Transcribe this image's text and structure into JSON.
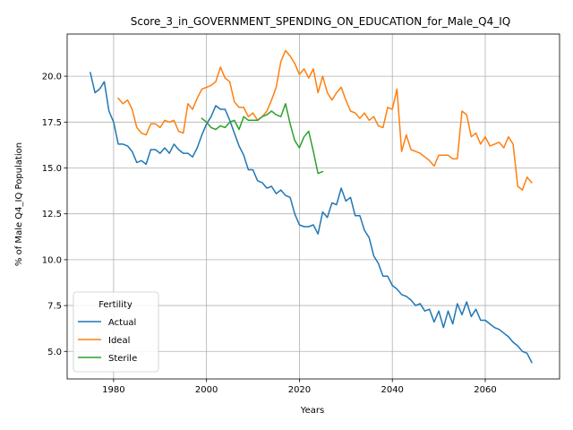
{
  "chart_data": {
    "type": "line",
    "title": "Score_3_in_GOVERNMENT_SPENDING_ON_EDUCATION_for_Male_Q4_IQ",
    "xlabel": "Years",
    "ylabel": "% of Male Q4_IQ Population",
    "xlim": [
      1970,
      2076
    ],
    "ylim": [
      3.5,
      22.3
    ],
    "xticks": [
      1980,
      2000,
      2020,
      2040,
      2060
    ],
    "yticks": [
      5.0,
      7.5,
      10.0,
      12.5,
      15.0,
      17.5,
      20.0
    ],
    "xtick_labels": [
      "1980",
      "2000",
      "2020",
      "2040",
      "2060"
    ],
    "ytick_labels": [
      "5.0",
      "7.5",
      "10.0",
      "12.5",
      "15.0",
      "17.5",
      "20.0"
    ],
    "grid": true,
    "legend": {
      "title": "Fertility",
      "placement": "lower-left"
    },
    "series": [
      {
        "name": "Actual",
        "color": "#1f77b4",
        "x": [
          1975,
          1976,
          1977,
          1978,
          1979,
          1980,
          1981,
          1982,
          1983,
          1984,
          1985,
          1986,
          1987,
          1988,
          1989,
          1990,
          1991,
          1992,
          1993,
          1994,
          1995,
          1996,
          1997,
          1998,
          1999,
          2000,
          2001,
          2002,
          2003,
          2004,
          2005,
          2006,
          2007,
          2008,
          2009,
          2010,
          2011,
          2012,
          2013,
          2014,
          2015,
          2016,
          2017,
          2018,
          2019,
          2020,
          2021,
          2022,
          2023,
          2024,
          2025,
          2026,
          2027,
          2028,
          2029,
          2030,
          2031,
          2032,
          2033,
          2034,
          2035,
          2036,
          2037,
          2038,
          2039,
          2040,
          2041,
          2042,
          2043,
          2044,
          2045,
          2046,
          2047,
          2048,
          2049,
          2050,
          2051,
          2052,
          2053,
          2054,
          2055,
          2056,
          2057,
          2058,
          2059,
          2060,
          2061,
          2062,
          2063,
          2064,
          2065,
          2066,
          2067,
          2068,
          2069,
          2070
        ],
        "y": [
          20.2,
          19.1,
          19.3,
          19.7,
          18.1,
          17.5,
          16.3,
          16.3,
          16.2,
          15.9,
          15.3,
          15.4,
          15.2,
          16.0,
          16.0,
          15.8,
          16.1,
          15.8,
          16.3,
          16.0,
          15.8,
          15.8,
          15.6,
          16.1,
          16.8,
          17.4,
          17.8,
          18.4,
          18.2,
          18.2,
          17.6,
          16.9,
          16.2,
          15.7,
          14.9,
          14.9,
          14.3,
          14.2,
          13.9,
          14.0,
          13.6,
          13.8,
          13.5,
          13.4,
          12.5,
          11.9,
          11.8,
          11.8,
          11.9,
          11.4,
          12.6,
          12.3,
          13.1,
          13.0,
          13.9,
          13.2,
          13.4,
          12.4,
          12.4,
          11.6,
          11.2,
          10.2,
          9.8,
          9.1,
          9.1,
          8.6,
          8.4,
          8.1,
          8.0,
          7.8,
          7.5,
          7.6,
          7.2,
          7.3,
          6.6,
          7.2,
          6.3,
          7.2,
          6.5,
          7.6,
          7.0,
          7.7,
          6.9,
          7.3,
          6.7,
          6.7,
          6.5,
          6.3,
          6.2,
          6.0,
          5.8,
          5.5,
          5.3,
          5.0,
          4.9,
          4.4
        ]
      },
      {
        "name": "Ideal",
        "color": "#ff7f0e",
        "x": [
          1981,
          1982,
          1983,
          1984,
          1985,
          1986,
          1987,
          1988,
          1989,
          1990,
          1991,
          1992,
          1993,
          1994,
          1995,
          1996,
          1997,
          1998,
          1999,
          2000,
          2001,
          2002,
          2003,
          2004,
          2005,
          2006,
          2007,
          2008,
          2009,
          2010,
          2011,
          2012,
          2013,
          2014,
          2015,
          2016,
          2017,
          2018,
          2019,
          2020,
          2021,
          2022,
          2023,
          2024,
          2025,
          2026,
          2027,
          2028,
          2029,
          2030,
          2031,
          2032,
          2033,
          2034,
          2035,
          2036,
          2037,
          2038,
          2039,
          2040,
          2041,
          2042,
          2043,
          2044,
          2045,
          2046,
          2047,
          2048,
          2049,
          2050,
          2051,
          2052,
          2053,
          2054,
          2055,
          2056,
          2057,
          2058,
          2059,
          2060,
          2061,
          2062,
          2063,
          2064,
          2065,
          2066,
          2067,
          2068,
          2069,
          2070
        ],
        "y": [
          18.8,
          18.5,
          18.7,
          18.2,
          17.2,
          16.9,
          16.8,
          17.4,
          17.4,
          17.2,
          17.6,
          17.5,
          17.6,
          17.0,
          16.9,
          18.5,
          18.2,
          18.8,
          19.3,
          19.4,
          19.5,
          19.7,
          20.5,
          19.9,
          19.7,
          18.6,
          18.3,
          18.3,
          17.8,
          18.0,
          17.6,
          17.8,
          18.1,
          18.7,
          19.4,
          20.8,
          21.4,
          21.1,
          20.7,
          20.1,
          20.4,
          19.9,
          20.4,
          19.1,
          20.0,
          19.1,
          18.7,
          19.1,
          19.4,
          18.7,
          18.1,
          18.0,
          17.7,
          18.0,
          17.6,
          17.8,
          17.3,
          17.2,
          18.3,
          18.2,
          19.3,
          15.9,
          16.8,
          16.0,
          15.9,
          15.8,
          15.6,
          15.4,
          15.1,
          15.7,
          15.7,
          15.7,
          15.5,
          15.5,
          18.1,
          17.9,
          16.7,
          16.9,
          16.3,
          16.7,
          16.2,
          16.3,
          16.4,
          16.1,
          16.7,
          16.3,
          14.0,
          13.8,
          14.5,
          14.2
        ]
      },
      {
        "name": "Sterile",
        "color": "#2ca02c",
        "x": [
          1999,
          2000,
          2001,
          2002,
          2003,
          2004,
          2005,
          2006,
          2007,
          2008,
          2009,
          2010,
          2011,
          2012,
          2013,
          2014,
          2015,
          2016,
          2017,
          2018,
          2019,
          2020,
          2021,
          2022,
          2023,
          2024,
          2025
        ],
        "y": [
          17.7,
          17.5,
          17.2,
          17.1,
          17.3,
          17.2,
          17.5,
          17.6,
          17.1,
          17.8,
          17.6,
          17.6,
          17.6,
          17.8,
          17.9,
          18.1,
          17.9,
          17.8,
          18.5,
          17.4,
          16.5,
          16.1,
          16.7,
          17.0,
          15.9,
          14.7,
          14.8
        ]
      }
    ]
  }
}
